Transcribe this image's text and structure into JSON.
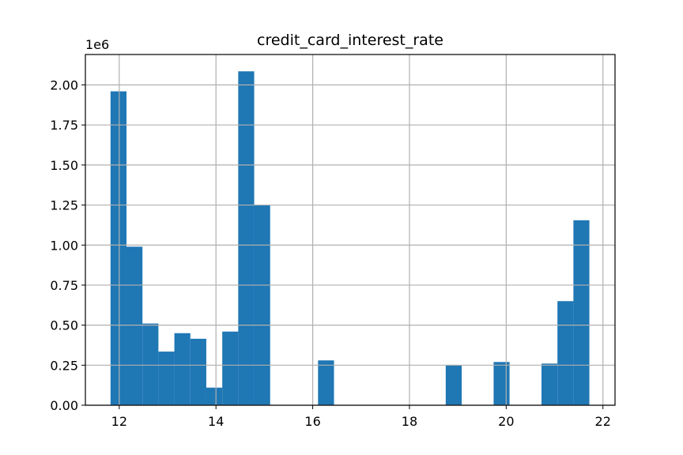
{
  "chart_data": {
    "type": "bar",
    "title": "credit_card_interest_rate",
    "xlabel": "",
    "ylabel": "",
    "y_multiplier_label": "1e6",
    "bar_color": "#1f77b4",
    "grid": true,
    "xlim": [
      11.3,
      22.25
    ],
    "ylim": [
      0,
      2.19
    ],
    "x_ticks": [
      12,
      14,
      16,
      18,
      20,
      22
    ],
    "x_tick_labels": [
      "12",
      "14",
      "16",
      "18",
      "20",
      "22"
    ],
    "y_ticks": [
      0,
      0.25,
      0.5,
      0.75,
      1.0,
      1.25,
      1.5,
      1.75,
      2.0
    ],
    "y_tick_labels": [
      "0.00",
      "0.25",
      "0.50",
      "0.75",
      "1.00",
      "1.25",
      "1.50",
      "1.75",
      "2.00"
    ],
    "bin_width": 0.33,
    "bins": [
      {
        "x0": 11.82,
        "value": 1.96
      },
      {
        "x0": 12.15,
        "value": 0.99
      },
      {
        "x0": 12.48,
        "value": 0.51
      },
      {
        "x0": 12.81,
        "value": 0.335
      },
      {
        "x0": 13.14,
        "value": 0.45
      },
      {
        "x0": 13.47,
        "value": 0.415
      },
      {
        "x0": 13.8,
        "value": 0.11
      },
      {
        "x0": 14.13,
        "value": 0.46
      },
      {
        "x0": 14.46,
        "value": 2.085
      },
      {
        "x0": 14.79,
        "value": 1.25
      },
      {
        "x0": 16.11,
        "value": 0.28
      },
      {
        "x0": 18.75,
        "value": 0.25
      },
      {
        "x0": 19.74,
        "value": 0.27
      },
      {
        "x0": 20.73,
        "value": 0.26
      },
      {
        "x0": 21.06,
        "value": 0.65
      },
      {
        "x0": 21.39,
        "value": 1.155
      }
    ]
  }
}
